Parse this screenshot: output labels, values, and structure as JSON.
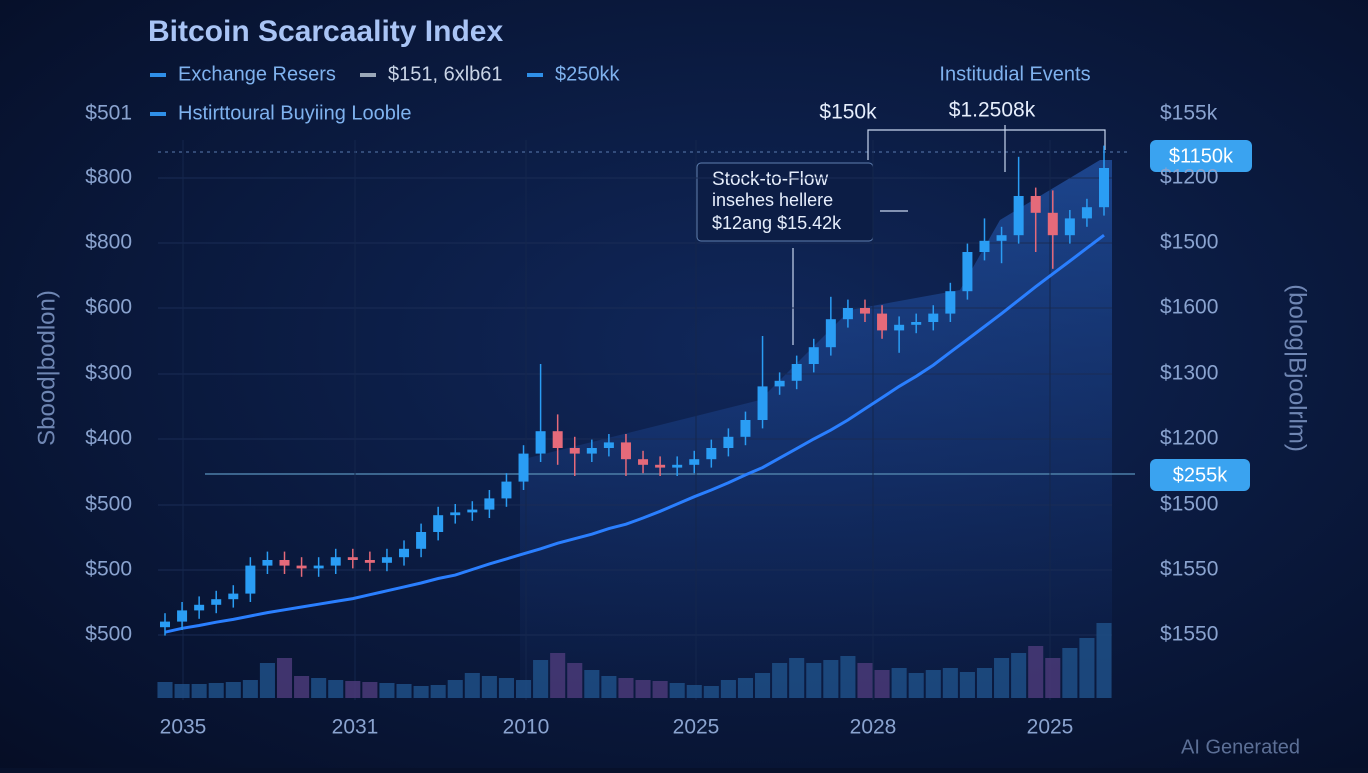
{
  "chart_data": {
    "type": "candlestick",
    "title": "Bitcoin Scarcaality Index",
    "legend": [
      {
        "name": "Exchange Resers",
        "color": "#2f8fe8"
      },
      {
        "name": "$151, 6xlb61",
        "color": "#9aa7b8"
      },
      {
        "name": "$250kk",
        "color": "#2f8fe8"
      },
      {
        "name": "Hstirttoural Buyiing Looble",
        "color": "#2f8fe8"
      }
    ],
    "events_label": "Institudial Events",
    "annotations": [
      "$150k",
      "$1.2508k"
    ],
    "callout": [
      "Stock-to-Flow",
      "insehes hellere",
      "$12ang $15.42k"
    ],
    "badges": [
      "$1150k",
      "$255k"
    ],
    "y_title_left": "Sbood|bodlon)",
    "y_title_right": "(bolog|Bjoolrlm)",
    "y_labels_left": [
      "$501",
      "$800",
      "$800",
      "$600",
      "$300",
      "$400",
      "$500",
      "$500",
      "$500"
    ],
    "y_labels_right": [
      "$155k",
      "$1200",
      "$1500",
      "$1600",
      "$1300",
      "$1200",
      "$1500",
      "$1550",
      "$1550"
    ],
    "x_labels": [
      "2035",
      "2031",
      "2010",
      "2025",
      "2028",
      "2025"
    ],
    "watermark": "AI Generated",
    "ylim": [
      0,
      100
    ],
    "volume_lim": [
      0,
      100
    ],
    "up_color": "#2a9df4",
    "down_color": "#e56a7a",
    "trend_color": "#2a7fff",
    "open": [
      13,
      14,
      16,
      17,
      18,
      19,
      24,
      25,
      24,
      23.5,
      24,
      25.5,
      25,
      24.5,
      25.5,
      27,
      30,
      33,
      33.5,
      34,
      36,
      39,
      44,
      48,
      45,
      44,
      45,
      46,
      43,
      42,
      41.5,
      42,
      43,
      45,
      47,
      50,
      56,
      57,
      60,
      63,
      68,
      70,
      69,
      66,
      67,
      67.5,
      69,
      73,
      80,
      82,
      83,
      90,
      87,
      83,
      86,
      88
    ],
    "high": [
      15.5,
      17.5,
      18.5,
      19.5,
      20.5,
      25.5,
      26.5,
      26.5,
      25.5,
      25.5,
      27,
      27,
      26.5,
      27,
      28.5,
      31.5,
      34.5,
      35,
      35.5,
      37.5,
      40.5,
      45.5,
      60,
      51,
      47,
      46.5,
      47.5,
      47.5,
      44.5,
      43.5,
      43.5,
      44.5,
      46.5,
      48.5,
      51.5,
      65,
      58.5,
      61.5,
      64.5,
      72,
      71.5,
      71.5,
      70.5,
      68.5,
      69,
      70.5,
      74.5,
      81.5,
      86,
      84.5,
      97,
      91.5,
      91,
      87.5,
      89.5,
      99
    ],
    "low": [
      11.5,
      12.5,
      14.5,
      15.5,
      16.5,
      17.5,
      22.5,
      22.5,
      22,
      22,
      22.5,
      23.5,
      23,
      23,
      24,
      25.5,
      28.5,
      31.5,
      32,
      32.5,
      34.5,
      37.5,
      42.5,
      42,
      40,
      42.5,
      43.5,
      40,
      40.5,
      40,
      40,
      40.5,
      41.5,
      43.5,
      45.5,
      48.5,
      54.5,
      55.5,
      58.5,
      61.5,
      66.5,
      67.5,
      64.5,
      62,
      65.5,
      66,
      67.5,
      71.5,
      78.5,
      78,
      81.5,
      80,
      77,
      81.5,
      84.5,
      86.5
    ],
    "close": [
      14,
      16,
      17,
      18,
      19,
      24,
      25,
      24,
      23.5,
      24,
      25.5,
      25,
      24.5,
      25.5,
      27,
      30,
      33,
      33.5,
      34,
      36,
      39,
      44,
      48,
      45,
      44,
      45,
      46,
      43,
      42,
      41.5,
      42,
      43,
      45,
      47,
      50,
      56,
      57,
      60,
      63,
      68,
      70,
      69,
      66,
      67,
      67.5,
      69,
      73,
      80,
      82,
      83,
      90,
      87,
      83,
      86,
      88,
      95
    ],
    "volume": [
      16,
      14,
      14,
      15,
      16,
      18,
      35,
      40,
      22,
      20,
      18,
      17,
      16,
      15,
      14,
      12,
      13,
      18,
      25,
      22,
      20,
      18,
      38,
      45,
      35,
      28,
      22,
      20,
      18,
      17,
      15,
      13,
      12,
      18,
      20,
      25,
      35,
      40,
      35,
      38,
      42,
      35,
      28,
      30,
      25,
      28,
      30,
      26,
      30,
      40,
      45,
      52,
      40,
      50,
      60,
      75
    ],
    "trend": [
      12.1,
      12.8,
      13.3,
      13.9,
      14.4,
      15,
      15.6,
      16.1,
      16.6,
      17.1,
      17.6,
      18.1,
      18.8,
      19.5,
      20.2,
      20.9,
      21.7,
      22.3,
      23.3,
      24.3,
      25.2,
      26.1,
      27,
      28,
      28.8,
      29.6,
      30.6,
      31.4,
      32.5,
      33.7,
      35,
      36.3,
      37.5,
      38.8,
      40.2,
      41.5,
      43.2,
      44.9,
      46.6,
      48.2,
      50,
      52,
      54,
      56,
      57.8,
      59.8,
      62.1,
      64.4,
      66.7,
      69,
      71.4,
      73.8,
      76.1,
      78.4,
      80.7,
      83
    ]
  }
}
